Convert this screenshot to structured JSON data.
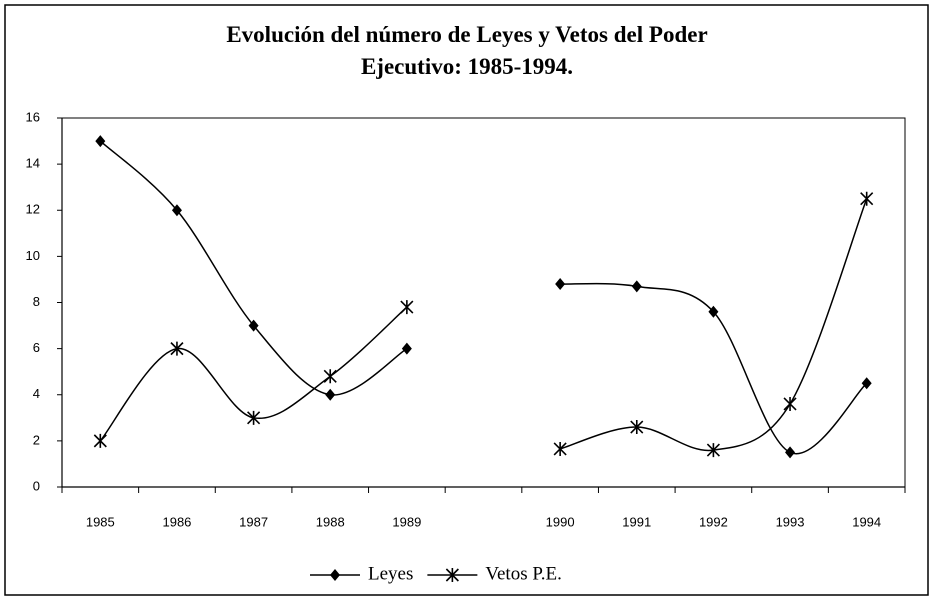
{
  "chart_data": {
    "type": "line",
    "title": "Evolución del número de Leyes y Vetos del Poder",
    "subtitle": "Ejecutivo: 1985-1994.",
    "categories": [
      "1985",
      "1986",
      "1987",
      "1988",
      "1989",
      null,
      "1990",
      "1991",
      "1992",
      "1993",
      "1994"
    ],
    "series": [
      {
        "name": "Leyes",
        "color": "#000000",
        "marker": "diamond",
        "values": [
          15,
          12,
          7,
          4,
          6,
          null,
          8.8,
          8.7,
          7.6,
          1.5,
          4.5
        ]
      },
      {
        "name": "Vetos P.E.",
        "color": "#000000",
        "marker": "asterisk",
        "values": [
          2,
          6,
          3,
          4.8,
          7.8,
          null,
          1.65,
          2.6,
          1.6,
          3.6,
          12.5
        ]
      }
    ],
    "ylim": [
      0,
      16
    ],
    "yticks": [
      0,
      2,
      4,
      6,
      8,
      10,
      12,
      14,
      16
    ],
    "grid": false,
    "legend": "bottom"
  }
}
